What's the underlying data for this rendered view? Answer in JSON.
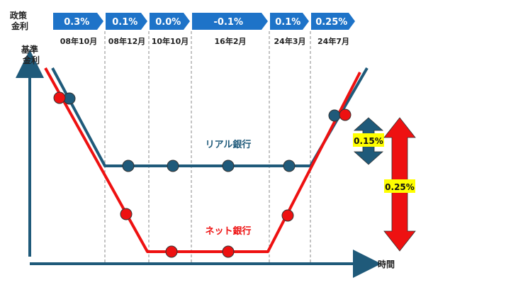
{
  "chart_data": {
    "type": "line",
    "rate_header_label": "政策\n金利",
    "y_axis_label": "基準\n金利",
    "x_axis_label": "時間",
    "policy_rates": [
      {
        "label": "0.3%",
        "date": "08年10月"
      },
      {
        "label": "0.1%",
        "date": "08年12月"
      },
      {
        "label": "0.0%",
        "date": "10年10月"
      },
      {
        "label": "-0.1%",
        "date": "16年2月"
      },
      {
        "label": "0.1%",
        "date": "24年3月"
      },
      {
        "label": "0.25%",
        "date": "24年7月"
      }
    ],
    "series": [
      {
        "name": "リアル銀行",
        "color": "#1f5a7a"
      },
      {
        "name": "ネット銀行",
        "color": "#ee1111"
      }
    ],
    "spread_annotations": [
      {
        "label": "0.15%",
        "color": "#1f5a7a"
      },
      {
        "label": "0.25%",
        "color": "#ee1111"
      }
    ],
    "colors": {
      "banner": "#1e73c8",
      "highlight": "#ffff00",
      "axis": "#1f5a7a",
      "divider": "#888888"
    }
  }
}
